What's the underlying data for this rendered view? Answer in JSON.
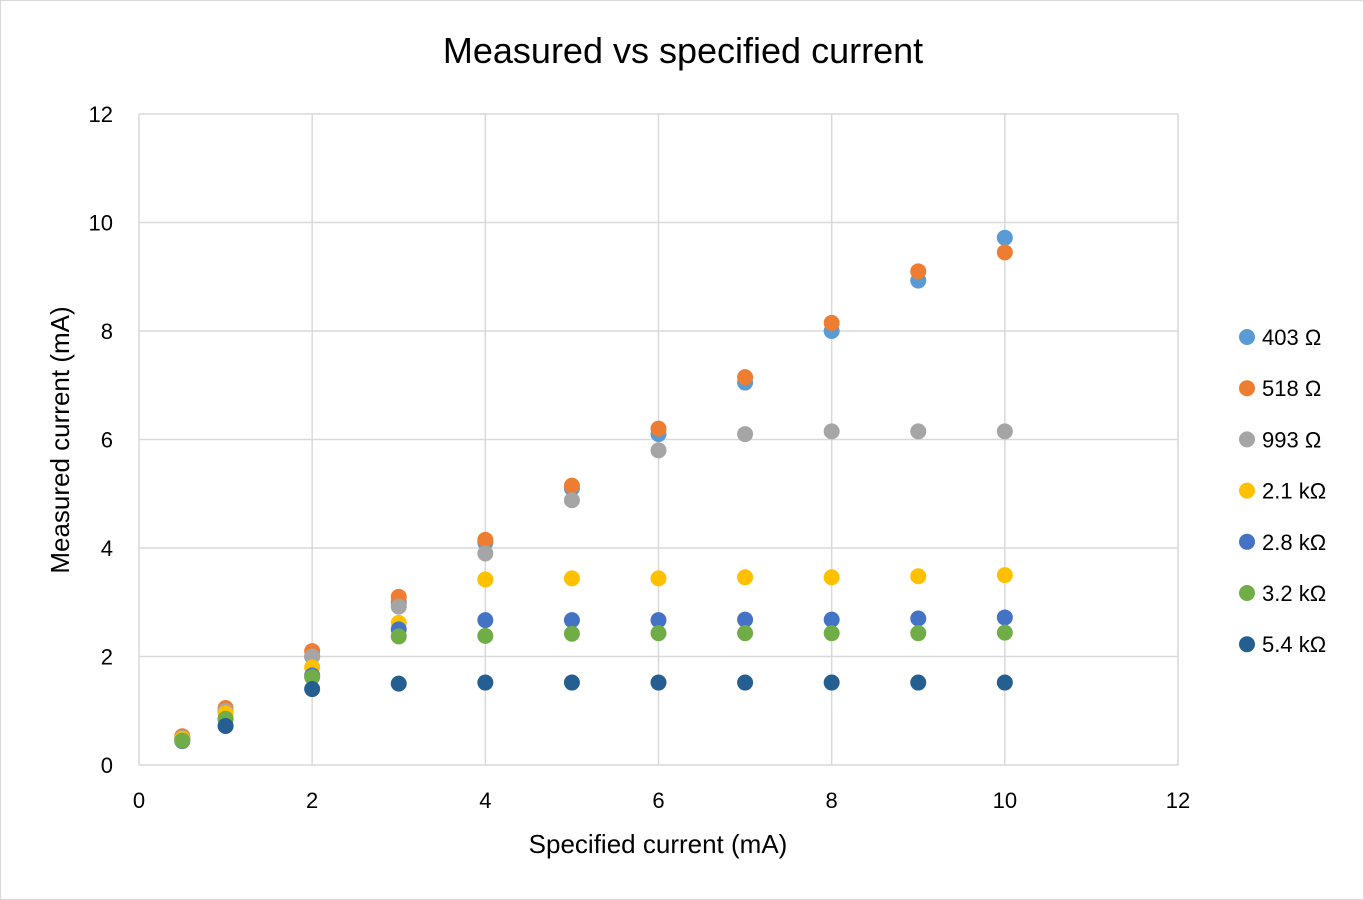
{
  "chart_data": {
    "type": "scatter",
    "title": "Measured vs specified current",
    "xlabel": "Specified current (mA)",
    "ylabel": "Measured current (mA)",
    "xlim": [
      0,
      12
    ],
    "ylim": [
      0,
      12
    ],
    "xticks": [
      "0",
      "2",
      "4",
      "6",
      "8",
      "10",
      "12"
    ],
    "yticks": [
      "0",
      "2",
      "4",
      "6",
      "8",
      "10",
      "12"
    ],
    "grid": true,
    "legend_position": "right",
    "series": [
      {
        "name": "403 Ω",
        "color": "#5b9bd5",
        "points": [
          [
            0.5,
            0.5
          ],
          [
            1,
            1.0
          ],
          [
            2,
            2.0
          ],
          [
            3,
            3.0
          ],
          [
            4,
            4.1
          ],
          [
            5,
            5.1
          ],
          [
            6,
            6.1
          ],
          [
            7,
            7.05
          ],
          [
            8,
            8.0
          ],
          [
            9,
            8.93
          ],
          [
            10,
            9.72
          ]
        ]
      },
      {
        "name": "518 Ω",
        "color": "#ed7d31",
        "points": [
          [
            0.5,
            0.53
          ],
          [
            1,
            1.05
          ],
          [
            2,
            2.1
          ],
          [
            3,
            3.1
          ],
          [
            4,
            4.15
          ],
          [
            5,
            5.15
          ],
          [
            6,
            6.2
          ],
          [
            7,
            7.15
          ],
          [
            8,
            8.15
          ],
          [
            9,
            9.1
          ],
          [
            10,
            9.45
          ]
        ]
      },
      {
        "name": "993 Ω",
        "color": "#a5a5a5",
        "points": [
          [
            0.5,
            0.5
          ],
          [
            1,
            1.0
          ],
          [
            2,
            2.0
          ],
          [
            3,
            2.92
          ],
          [
            4,
            3.9
          ],
          [
            5,
            4.88
          ],
          [
            6,
            5.8
          ],
          [
            7,
            6.1
          ],
          [
            8,
            6.15
          ],
          [
            9,
            6.15
          ],
          [
            10,
            6.15
          ]
        ]
      },
      {
        "name": "2.1 kΩ",
        "color": "#ffc000",
        "points": [
          [
            0.5,
            0.48
          ],
          [
            1,
            0.95
          ],
          [
            2,
            1.8
          ],
          [
            3,
            2.62
          ],
          [
            4,
            3.42
          ],
          [
            5,
            3.44
          ],
          [
            6,
            3.44
          ],
          [
            7,
            3.46
          ],
          [
            8,
            3.46
          ],
          [
            9,
            3.48
          ],
          [
            10,
            3.5
          ]
        ]
      },
      {
        "name": "2.8 kΩ",
        "color": "#4472c4",
        "points": [
          [
            0.5,
            0.44
          ],
          [
            1,
            0.85
          ],
          [
            2,
            1.65
          ],
          [
            3,
            2.5
          ],
          [
            4,
            2.67
          ],
          [
            5,
            2.67
          ],
          [
            6,
            2.67
          ],
          [
            7,
            2.68
          ],
          [
            8,
            2.68
          ],
          [
            9,
            2.7
          ],
          [
            10,
            2.72
          ]
        ]
      },
      {
        "name": "3.2 kΩ",
        "color": "#70ad47",
        "points": [
          [
            0.5,
            0.45
          ],
          [
            1,
            0.85
          ],
          [
            2,
            1.62
          ],
          [
            3,
            2.37
          ],
          [
            4,
            2.38
          ],
          [
            5,
            2.42
          ],
          [
            6,
            2.43
          ],
          [
            7,
            2.43
          ],
          [
            8,
            2.43
          ],
          [
            9,
            2.43
          ],
          [
            10,
            2.44
          ]
        ]
      },
      {
        "name": "5.4 kΩ",
        "color": "#255e91",
        "points": [
          [
            1,
            0.72
          ],
          [
            2,
            1.4
          ],
          [
            3,
            1.5
          ],
          [
            4,
            1.52
          ],
          [
            5,
            1.52
          ],
          [
            6,
            1.52
          ],
          [
            7,
            1.52
          ],
          [
            8,
            1.52
          ],
          [
            9,
            1.52
          ],
          [
            10,
            1.52
          ]
        ]
      }
    ]
  }
}
